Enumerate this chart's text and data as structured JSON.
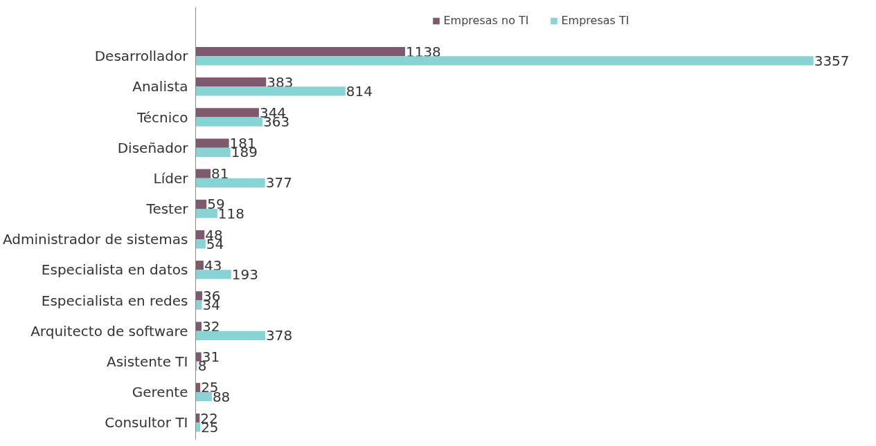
{
  "chart_data": {
    "type": "bar",
    "orientation": "horizontal",
    "categories": [
      "Desarrollador",
      "Analista",
      "Técnico",
      "Diseñador",
      "Líder",
      "Tester",
      "Administrador de sistemas",
      "Especialista en datos",
      "Especialista en redes",
      "Arquitecto de software",
      "Asistente TI",
      "Gerente",
      "Consultor TI"
    ],
    "series": [
      {
        "name": "Empresas no TI",
        "color": "#7f5a6e",
        "values": [
          1138,
          383,
          344,
          181,
          81,
          59,
          48,
          43,
          36,
          32,
          31,
          25,
          22
        ]
      },
      {
        "name": "Empresas TI",
        "color": "#88d3d3",
        "values": [
          3357,
          814,
          363,
          189,
          377,
          118,
          54,
          193,
          34,
          378,
          8,
          88,
          25
        ]
      }
    ],
    "data_labels": true,
    "legend": "top",
    "grid": false
  }
}
